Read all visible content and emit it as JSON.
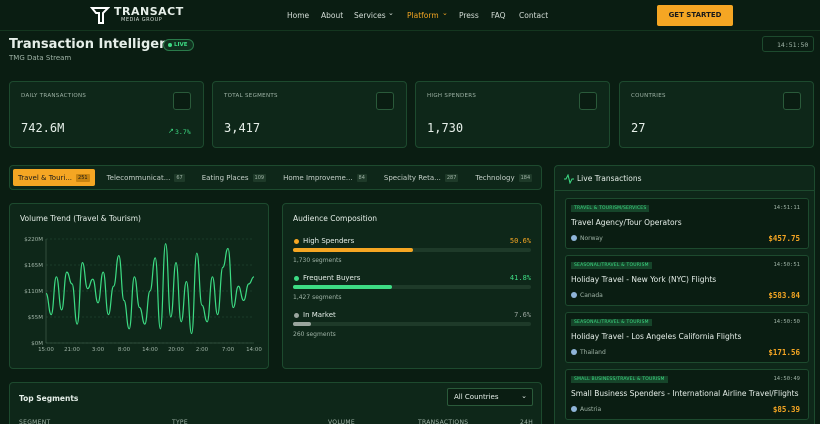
{
  "nav": {
    "logo_title": "TRANSACT",
    "logo_subtitle": "MEDIA GROUP",
    "links": [
      "Home",
      "About",
      "Services",
      "Platform",
      "Press",
      "FAQ",
      "Contact"
    ],
    "active": "Platform",
    "cta": "GET STARTED"
  },
  "header": {
    "title": "Transaction Intelligence",
    "badge": "LIVE",
    "subtitle": "TMG Data Stream",
    "clock": "14:51:50"
  },
  "stats": [
    {
      "label": "DAILY TRANSACTIONS",
      "value": "742.6M",
      "change": "3.7%"
    },
    {
      "label": "TOTAL SEGMENTS",
      "value": "3,417"
    },
    {
      "label": "HIGH SPENDERS",
      "value": "1,730"
    },
    {
      "label": "COUNTRIES",
      "value": "27"
    }
  ],
  "tabs": [
    {
      "label": "Travel & Touri...",
      "count": "251"
    },
    {
      "label": "Telecommunicat...",
      "count": "67"
    },
    {
      "label": "Eating Places",
      "count": "109"
    },
    {
      "label": "Home Improveme...",
      "count": "84"
    },
    {
      "label": "Specialty Reta...",
      "count": "287"
    },
    {
      "label": "Technology",
      "count": "184"
    }
  ],
  "chart_data": {
    "type": "line",
    "title": "Volume Trend (Travel & Tourism)",
    "color": "#3ddc84",
    "grid": true,
    "categories": [
      "15:00",
      null,
      null,
      null,
      null,
      "21:00",
      null,
      null,
      null,
      null,
      "3:00",
      null,
      null,
      null,
      null,
      "8:00",
      null,
      null,
      null,
      null,
      "14:00",
      null,
      null,
      null,
      null,
      "20:00",
      null,
      null,
      null,
      null,
      "2:00",
      null,
      null,
      null,
      null,
      "7:00",
      null,
      null,
      null,
      null,
      "14:00"
    ],
    "values": [
      105,
      60,
      140,
      70,
      150,
      125,
      40,
      170,
      115,
      135,
      85,
      150,
      60,
      120,
      185,
      90,
      30,
      140,
      75,
      40,
      110,
      180,
      30,
      210,
      55,
      170,
      45,
      130,
      20,
      190,
      80,
      45,
      140,
      60,
      160,
      200,
      75,
      120,
      90,
      125,
      140
    ],
    "ylim": [
      0,
      220
    ],
    "yticks": [
      {
        "value": 0,
        "label": "$0M"
      },
      {
        "value": 55,
        "label": "$55M"
      },
      {
        "value": 110,
        "label": "$110M"
      },
      {
        "value": 165,
        "label": "$165M"
      },
      {
        "value": 220,
        "label": "$220M"
      }
    ]
  },
  "audience": {
    "title": "Audience Composition",
    "items": [
      {
        "name": "High Spenders",
        "percent": {
          "value": 50.6,
          "label": "50.6%"
        },
        "segments": "1,730 segments",
        "color": "#f5a623"
      },
      {
        "name": "Frequent Buyers",
        "percent": {
          "value": 41.8,
          "label": "41.8%"
        },
        "segments": "1,427 segments",
        "color": "#3ddc84"
      },
      {
        "name": "In Market",
        "percent": {
          "value": 7.6,
          "label": "7.6%"
        },
        "segments": "260 segments",
        "color": "#9aa59e"
      }
    ]
  },
  "live": {
    "title": "Live Transactions",
    "items": [
      {
        "category": "TRAVEL & TOURISM/SERVICES",
        "time": "14:51:11",
        "name": "Travel Agency/Tour Operators",
        "country": "Norway",
        "amount": "$457.75"
      },
      {
        "category": "SEASONAL/TRAVEL & TOURISM",
        "time": "14:50:51",
        "name": "Holiday Travel - New York (NYC) Flights",
        "country": "Canada",
        "amount": "$583.84"
      },
      {
        "category": "SEASONAL/TRAVEL & TOURISM",
        "time": "14:50:50",
        "name": "Holiday Travel - Los Angeles California Flights",
        "country": "Thailand",
        "amount": "$171.56"
      },
      {
        "category": "SMALL BUSINESS/TRAVEL & TOURISM",
        "time": "14:50:49",
        "name": "Small Business Spenders - International Airline Travel/Flights",
        "country": "Austria",
        "amount": "$85.39"
      }
    ]
  },
  "segments": {
    "title": "Top Segments",
    "filter": "All Countries",
    "columns": [
      "SEGMENT",
      "TYPE",
      "VOLUME",
      "TRANSACTIONS",
      "24H"
    ]
  }
}
